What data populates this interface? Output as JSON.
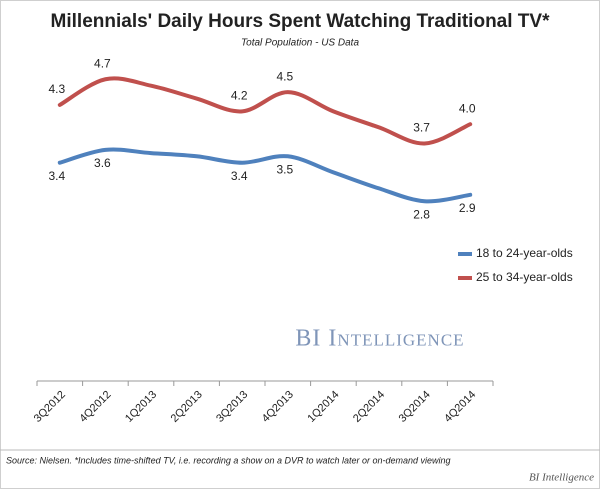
{
  "chart_data": {
    "type": "line",
    "title": "Millennials' Daily Hours Spent Watching Traditional TV*",
    "subtitle": "Total Population - US Data",
    "categories": [
      "3Q2012",
      "4Q2012",
      "1Q2013",
      "2Q2013",
      "3Q2013",
      "4Q2013",
      "1Q2014",
      "2Q2014",
      "3Q2014",
      "4Q2014"
    ],
    "series": [
      {
        "name": "18 to 24-year-olds",
        "color": "#4f81bd",
        "values": [
          3.4,
          3.6,
          3.55,
          3.5,
          3.4,
          3.5,
          3.25,
          3.0,
          2.8,
          2.9
        ],
        "value_labels": [
          "3.4",
          "3.6",
          null,
          null,
          "3.4",
          "3.5",
          null,
          null,
          "2.8",
          "2.9"
        ]
      },
      {
        "name": "25 to 34-year-olds",
        "color": "#c0504d",
        "values": [
          4.3,
          4.7,
          4.6,
          4.4,
          4.2,
          4.5,
          4.2,
          3.95,
          3.7,
          4.0
        ],
        "value_labels": [
          "4.3",
          "4.7",
          null,
          null,
          "4.2",
          "4.5",
          null,
          null,
          "3.7",
          "4.0"
        ]
      }
    ],
    "ylim": [
      0,
      5
    ],
    "watermark": "BI Intelligence",
    "source": "Source: Nielsen. *Includes time-shifted TV, i.e. recording a show on a DVR to watch later or on-demand viewing",
    "credit": "BI Intelligence"
  }
}
